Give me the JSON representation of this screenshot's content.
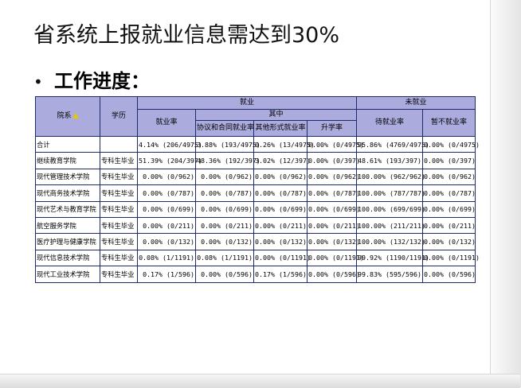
{
  "slide": {
    "title": "省系统上报就业信息需达到30%",
    "bullet": "•",
    "bullet_text": "工作进度："
  },
  "table": {
    "headers": {
      "college": "院系",
      "education": "学历",
      "employed": "就业",
      "not_employed": "未就业",
      "employment_rate": "就业率",
      "of_which": "其中",
      "agreement_rate": "协议和合同就业率",
      "other_rate": "其他形式就业率",
      "further_study_rate": "升学率",
      "pending_rate": "待就业率",
      "defer_rate": "暂不就业率"
    },
    "rows": [
      {
        "name": "合计",
        "edu": "",
        "rate": "4.14% (206/4975)",
        "agree": "3.88% (193/4975)",
        "other": "0.26% (13/4975)",
        "study": "0.00% (0/4975)",
        "pending": "95.86% (4769/4975)",
        "defer": "0.00% (0/4975)"
      },
      {
        "name": "继续教育学院",
        "edu": "专科生毕业",
        "rate": "51.39% (204/397)",
        "agree": "48.36% (192/397)",
        "other": "3.02% (12/397)",
        "study": "0.00% (0/397)",
        "pending": "48.61% (193/397)",
        "defer": "0.00% (0/397)"
      },
      {
        "name": "现代管理技术学院",
        "edu": "专科生毕业",
        "rate": "0.00% (0/962)",
        "agree": "0.00% (0/962)",
        "other": "0.00% (0/962)",
        "study": "0.00% (0/962)",
        "pending": "100.00% (962/962)",
        "defer": "0.00% (0/962)"
      },
      {
        "name": "现代商务技术学院",
        "edu": "专科生毕业",
        "rate": "0.00% (0/787)",
        "agree": "0.00% (0/787)",
        "other": "0.00% (0/787)",
        "study": "0.00% (0/787)",
        "pending": "100.00% (787/787)",
        "defer": "0.00% (0/787)"
      },
      {
        "name": "现代艺术与教育学院",
        "edu": "专科生毕业",
        "rate": "0.00% (0/699)",
        "agree": "0.00% (0/699)",
        "other": "0.00% (0/699)",
        "study": "0.00% (0/699)",
        "pending": "100.00% (699/699)",
        "defer": "0.00% (0/699)"
      },
      {
        "name": "航空服务学院",
        "edu": "专科生毕业",
        "rate": "0.00% (0/211)",
        "agree": "0.00% (0/211)",
        "other": "0.00% (0/211)",
        "study": "0.00% (0/211)",
        "pending": "100.00% (211/211)",
        "defer": "0.00% (0/211)"
      },
      {
        "name": "医疗护理与健康学院",
        "edu": "专科生毕业",
        "rate": "0.00% (0/132)",
        "agree": "0.00% (0/132)",
        "other": "0.00% (0/132)",
        "study": "0.00% (0/132)",
        "pending": "100.00% (132/132)",
        "defer": "0.00% (0/132)"
      },
      {
        "name": "现代信息技术学院",
        "edu": "专科生毕业",
        "rate": "0.08% (1/1191)",
        "agree": "0.08% (1/1191)",
        "other": "0.00% (0/1191)",
        "study": "0.00% (0/1191)",
        "pending": "99.92% (1190/1191)",
        "defer": "0.00% (0/1191)"
      },
      {
        "name": "现代工业技术学院",
        "edu": "专科生毕业",
        "rate": "0.17% (1/596)",
        "agree": "0.00% (0/596)",
        "other": "0.17% (1/596)",
        "study": "0.00% (0/596)",
        "pending": "99.83% (595/596)",
        "defer": "0.00% (0/596)"
      }
    ]
  },
  "colors": {
    "header_bg": "#ababde",
    "border": "#1f2a6a",
    "sort_indicator": "#e6c700"
  }
}
